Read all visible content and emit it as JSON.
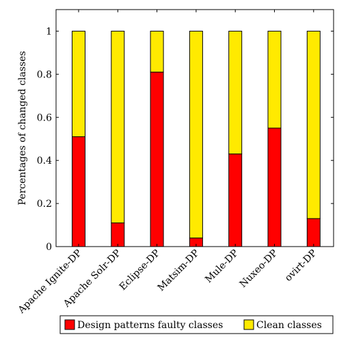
{
  "chart_data": {
    "type": "bar",
    "stacked": true,
    "categories": [
      "Apache Ignite-DP",
      "Apache Solr-DP",
      "Eclipse-DP",
      "Matsim-DP",
      "Mule-DP",
      "Nuxeo-DP",
      "ovirt-DP"
    ],
    "series": [
      {
        "name": "Design patterns faulty classes",
        "color": "#ff0000",
        "values": [
          0.51,
          0.11,
          0.81,
          0.04,
          0.43,
          0.55,
          0.13
        ]
      },
      {
        "name": "Clean classes",
        "color": "#ffea00",
        "values": [
          0.49,
          0.89,
          0.19,
          0.96,
          0.57,
          0.45,
          0.87
        ]
      }
    ],
    "ylabel": "Percentages of changed classes",
    "xlabel": "",
    "title": "",
    "ylim": [
      0,
      1.1
    ],
    "yticks": [
      0,
      0.2,
      0.4,
      0.6,
      0.8,
      1
    ],
    "ytick_labels": [
      "0",
      "0.2",
      "0.4",
      "0.6",
      "0.8",
      "1"
    ],
    "legend_position": "bottom",
    "grid": false
  }
}
